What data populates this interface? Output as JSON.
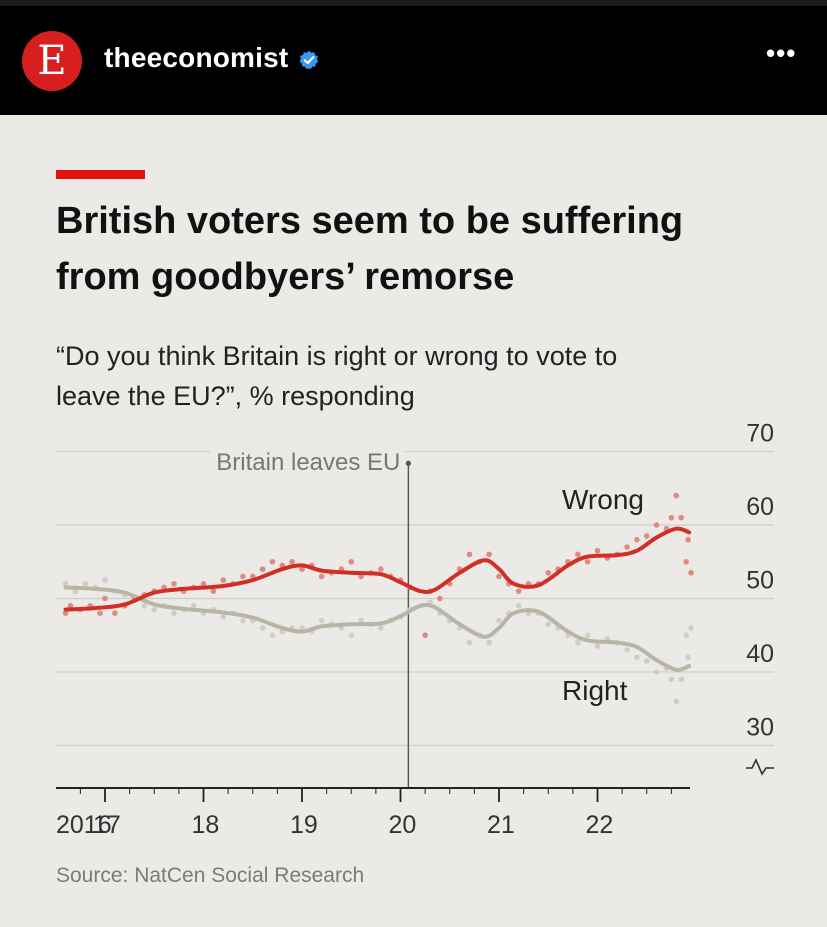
{
  "header": {
    "avatar_letter": "E",
    "username": "theeconomist",
    "verified_icon": "verified-badge-icon",
    "more_label": "•••"
  },
  "graphic": {
    "title": "British voters seem to be suffering from goodbyers’ remorse",
    "subtitle": "“Do you think Britain is right or wrong to vote to leave the EU?”, % responding",
    "source": "Source: NatCen Social Research"
  },
  "chart_data": {
    "type": "line",
    "title": "British voters seem to be suffering from goodbyers’ remorse",
    "subtitle": "“Do you think Britain is right or wrong to vote to leave the EU?”, % responding",
    "x_tick_labels": [
      "2016",
      "17",
      "18",
      "19",
      "20",
      "21",
      "22"
    ],
    "y_tick_labels": [
      "30",
      "40",
      "50",
      "60",
      "70"
    ],
    "ylim": [
      30,
      70
    ],
    "y_axis_side": "right",
    "y_axis_break": true,
    "annotation": {
      "label": "Britain leaves EU",
      "x": 2020.08
    },
    "series": [
      {
        "name": "Wrong",
        "color": "#d12f26",
        "trend": [
          [
            2016.6,
            48.5
          ],
          [
            2016.9,
            48.7
          ],
          [
            2017.2,
            49.2
          ],
          [
            2017.5,
            50.8
          ],
          [
            2017.8,
            51.3
          ],
          [
            2018.2,
            51.7
          ],
          [
            2018.5,
            52.5
          ],
          [
            2018.8,
            54
          ],
          [
            2019.0,
            54.5
          ],
          [
            2019.2,
            53.8
          ],
          [
            2019.5,
            53.5
          ],
          [
            2019.8,
            53.3
          ],
          [
            2020.0,
            52.2
          ],
          [
            2020.2,
            51
          ],
          [
            2020.35,
            51.2
          ],
          [
            2020.6,
            53.5
          ],
          [
            2020.85,
            55.2
          ],
          [
            2021.0,
            54
          ],
          [
            2021.15,
            52
          ],
          [
            2021.4,
            51.8
          ],
          [
            2021.7,
            54.5
          ],
          [
            2021.9,
            55.7
          ],
          [
            2022.2,
            55.9
          ],
          [
            2022.4,
            56.5
          ],
          [
            2022.6,
            58.3
          ],
          [
            2022.8,
            59.5
          ],
          [
            2022.93,
            59
          ]
        ],
        "polls": [
          [
            2016.6,
            48
          ],
          [
            2016.65,
            49
          ],
          [
            2016.75,
            48.5
          ],
          [
            2016.85,
            49
          ],
          [
            2016.95,
            48
          ],
          [
            2017.0,
            50
          ],
          [
            2017.1,
            48
          ],
          [
            2017.2,
            49
          ],
          [
            2017.3,
            50
          ],
          [
            2017.4,
            50.5
          ],
          [
            2017.5,
            51
          ],
          [
            2017.6,
            51.5
          ],
          [
            2017.7,
            52
          ],
          [
            2017.8,
            51
          ],
          [
            2017.9,
            51.5
          ],
          [
            2018.0,
            52
          ],
          [
            2018.1,
            51
          ],
          [
            2018.2,
            52.5
          ],
          [
            2018.3,
            52
          ],
          [
            2018.4,
            53
          ],
          [
            2018.5,
            53
          ],
          [
            2018.6,
            54
          ],
          [
            2018.7,
            55
          ],
          [
            2018.8,
            54.5
          ],
          [
            2018.9,
            55
          ],
          [
            2019.0,
            54
          ],
          [
            2019.1,
            54.5
          ],
          [
            2019.2,
            53
          ],
          [
            2019.3,
            53.5
          ],
          [
            2019.4,
            54
          ],
          [
            2019.5,
            55
          ],
          [
            2019.6,
            53
          ],
          [
            2019.7,
            53.5
          ],
          [
            2019.8,
            54
          ],
          [
            2019.9,
            53
          ],
          [
            2020.0,
            52.5
          ],
          [
            2020.1,
            51.5
          ],
          [
            2020.25,
            45
          ],
          [
            2020.3,
            51
          ],
          [
            2020.4,
            50
          ],
          [
            2020.5,
            52
          ],
          [
            2020.6,
            54
          ],
          [
            2020.7,
            56
          ],
          [
            2020.8,
            55
          ],
          [
            2020.9,
            56
          ],
          [
            2021.0,
            53
          ],
          [
            2021.1,
            52
          ],
          [
            2021.2,
            51
          ],
          [
            2021.3,
            52
          ],
          [
            2021.4,
            52
          ],
          [
            2021.5,
            53.5
          ],
          [
            2021.6,
            54
          ],
          [
            2021.7,
            55
          ],
          [
            2021.8,
            56
          ],
          [
            2021.9,
            55
          ],
          [
            2022.0,
            56.5
          ],
          [
            2022.1,
            55.5
          ],
          [
            2022.2,
            56
          ],
          [
            2022.3,
            57
          ],
          [
            2022.4,
            58
          ],
          [
            2022.5,
            58.5
          ],
          [
            2022.6,
            60
          ],
          [
            2022.7,
            59.5
          ],
          [
            2022.75,
            61
          ],
          [
            2022.8,
            64
          ],
          [
            2022.85,
            61
          ],
          [
            2022.9,
            55
          ],
          [
            2022.92,
            58
          ],
          [
            2022.95,
            53.5
          ]
        ]
      },
      {
        "name": "Right",
        "color": "#b7b5a5",
        "trend": [
          [
            2016.6,
            51.5
          ],
          [
            2016.9,
            51.3
          ],
          [
            2017.2,
            50.8
          ],
          [
            2017.5,
            49.2
          ],
          [
            2017.8,
            48.6
          ],
          [
            2018.2,
            48.1
          ],
          [
            2018.5,
            47.4
          ],
          [
            2018.8,
            46
          ],
          [
            2019.0,
            45.5
          ],
          [
            2019.2,
            46.2
          ],
          [
            2019.5,
            46.5
          ],
          [
            2019.8,
            46.6
          ],
          [
            2020.0,
            47.6
          ],
          [
            2020.2,
            49
          ],
          [
            2020.35,
            48.8
          ],
          [
            2020.6,
            46.5
          ],
          [
            2020.85,
            44.8
          ],
          [
            2021.0,
            46
          ],
          [
            2021.15,
            48
          ],
          [
            2021.4,
            48.2
          ],
          [
            2021.7,
            45.5
          ],
          [
            2021.9,
            44.3
          ],
          [
            2022.2,
            44
          ],
          [
            2022.4,
            43.4
          ],
          [
            2022.6,
            41.6
          ],
          [
            2022.8,
            40.3
          ],
          [
            2022.93,
            40.8
          ]
        ],
        "polls": [
          [
            2016.6,
            52
          ],
          [
            2016.7,
            51
          ],
          [
            2016.8,
            52
          ],
          [
            2016.9,
            51.5
          ],
          [
            2017.0,
            52.5
          ],
          [
            2017.1,
            51
          ],
          [
            2017.2,
            50.5
          ],
          [
            2017.3,
            50
          ],
          [
            2017.4,
            49
          ],
          [
            2017.5,
            48.5
          ],
          [
            2017.6,
            49
          ],
          [
            2017.7,
            48
          ],
          [
            2017.8,
            48.5
          ],
          [
            2017.9,
            49
          ],
          [
            2018.0,
            48
          ],
          [
            2018.1,
            48.5
          ],
          [
            2018.2,
            47.5
          ],
          [
            2018.3,
            48
          ],
          [
            2018.4,
            47
          ],
          [
            2018.5,
            47
          ],
          [
            2018.6,
            46
          ],
          [
            2018.7,
            45
          ],
          [
            2018.8,
            45.5
          ],
          [
            2018.9,
            46
          ],
          [
            2019.0,
            46
          ],
          [
            2019.1,
            45.5
          ],
          [
            2019.2,
            47
          ],
          [
            2019.3,
            46.5
          ],
          [
            2019.4,
            46
          ],
          [
            2019.5,
            45
          ],
          [
            2019.6,
            47
          ],
          [
            2019.7,
            46.5
          ],
          [
            2019.8,
            46
          ],
          [
            2019.9,
            47
          ],
          [
            2020.0,
            47.5
          ],
          [
            2020.1,
            48.5
          ],
          [
            2020.3,
            49.5
          ],
          [
            2020.4,
            48
          ],
          [
            2020.5,
            47
          ],
          [
            2020.6,
            46
          ],
          [
            2020.7,
            44
          ],
          [
            2020.8,
            45
          ],
          [
            2020.9,
            44
          ],
          [
            2021.0,
            47
          ],
          [
            2021.1,
            48
          ],
          [
            2021.2,
            49
          ],
          [
            2021.3,
            48
          ],
          [
            2021.4,
            48
          ],
          [
            2021.5,
            46.5
          ],
          [
            2021.6,
            46
          ],
          [
            2021.7,
            45
          ],
          [
            2021.8,
            44
          ],
          [
            2021.9,
            45
          ],
          [
            2022.0,
            43.5
          ],
          [
            2022.1,
            44.5
          ],
          [
            2022.2,
            44
          ],
          [
            2022.3,
            43
          ],
          [
            2022.4,
            42
          ],
          [
            2022.5,
            41.5
          ],
          [
            2022.6,
            40
          ],
          [
            2022.7,
            40.5
          ],
          [
            2022.75,
            39
          ],
          [
            2022.8,
            36
          ],
          [
            2022.85,
            39
          ],
          [
            2022.9,
            45
          ],
          [
            2022.92,
            42
          ],
          [
            2022.95,
            46
          ]
        ]
      }
    ]
  }
}
